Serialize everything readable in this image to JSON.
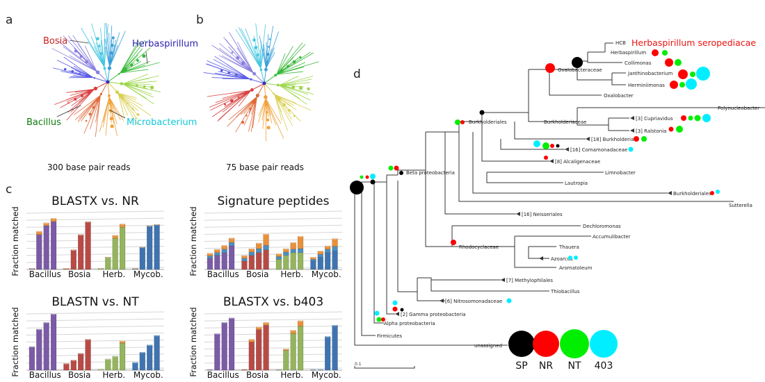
{
  "panels": {
    "a": {
      "letter": "a",
      "caption": "300 base pair reads",
      "labels": {
        "bosia": "Bosia",
        "herbaspirillum": "Herbaspirillum",
        "bacillus": "Bacillus",
        "microbacterium": "Microbacterium"
      }
    },
    "b": {
      "letter": "b",
      "caption": "75 base pair reads"
    },
    "c": {
      "letter": "c",
      "ylabel": "Fraction matched"
    },
    "d": {
      "letter": "d",
      "scale_label": "0.1"
    }
  },
  "chart_data": [
    {
      "type": "bar",
      "title": "BLASTX vs. NR",
      "ylabel": "Fraction matched",
      "categories": [
        "Bacillus",
        "Bosia",
        "Herb.",
        "Mycob."
      ],
      "stacked": true,
      "groups": [
        {
          "category": "Bacillus",
          "color": "#7b5aa6",
          "bars": [
            [
              0.02,
              0
            ],
            [
              0.62,
              0.06
            ],
            [
              0.78,
              0.05
            ],
            [
              0.85,
              0.06
            ]
          ]
        },
        {
          "category": "Bosia",
          "color": "#b84a45",
          "bars": [
            [
              0.02,
              0
            ],
            [
              0.35,
              0
            ],
            [
              0.62,
              0
            ],
            [
              0.85,
              0
            ]
          ]
        },
        {
          "category": "Herb.",
          "color": "#94b45e",
          "bars": [
            [
              0.02,
              0
            ],
            [
              0.22,
              0
            ],
            [
              0.55,
              0.06
            ],
            [
              0.75,
              0.06
            ]
          ]
        },
        {
          "category": "Mycob.",
          "color": "#3f74b0",
          "bars": [
            [
              0.02,
              0
            ],
            [
              0.4,
              0
            ],
            [
              0.78,
              0
            ],
            [
              0.8,
              0
            ]
          ]
        }
      ]
    },
    {
      "type": "bar",
      "title": "Signature peptides",
      "ylabel": "Fraction matched",
      "categories": [
        "Bacillus",
        "Bosia",
        "Herb.",
        "Mycob."
      ],
      "stacked": true,
      "groups": [
        {
          "category": "Bacillus",
          "color": "#7b5aa6",
          "bars": [
            [
              0.2,
              0.04,
              0.05
            ],
            [
              0.25,
              0.05,
              0.06
            ],
            [
              0.3,
              0.06,
              0.07
            ],
            [
              0.42,
              0.06,
              0.08
            ]
          ]
        },
        {
          "category": "Bosia",
          "color": "#b84a45",
          "bars": [
            [
              0.15,
              0.05,
              0.05
            ],
            [
              0.25,
              0.06,
              0.06
            ],
            [
              0.3,
              0.07,
              0.1
            ],
            [
              0.35,
              0.08,
              0.2
            ]
          ]
        },
        {
          "category": "Herb.",
          "color": "#94b45e",
          "bars": [
            [
              0.18,
              0.05,
              0.05
            ],
            [
              0.25,
              0.06,
              0.06
            ],
            [
              0.3,
              0.06,
              0.12
            ],
            [
              0.3,
              0.07,
              0.22
            ]
          ]
        },
        {
          "category": "Mycob.",
          "color": "#3f74b0",
          "bars": [
            [
              0.15,
              0.03,
              0.04
            ],
            [
              0.22,
              0.05,
              0.06
            ],
            [
              0.3,
              0.06,
              0.06
            ],
            [
              0.33,
              0.08,
              0.14
            ]
          ]
        }
      ]
    },
    {
      "type": "bar",
      "title": "BLASTN vs. NT",
      "ylabel": "Fraction matched",
      "categories": [
        "Bacillus",
        "Bosia",
        "Herb.",
        "Mycob."
      ],
      "stacked": false,
      "groups": [
        {
          "category": "Bacillus",
          "color": "#7b5aa6",
          "bars": [
            [
              0.42
            ],
            [
              0.73
            ],
            [
              0.85
            ],
            [
              1.0
            ]
          ]
        },
        {
          "category": "Bosia",
          "color": "#b84a45",
          "bars": [
            [
              0.12
            ],
            [
              0.18
            ],
            [
              0.3
            ],
            [
              0.55
            ]
          ]
        },
        {
          "category": "Herb.",
          "color": "#94b45e",
          "bars": [
            [
              0.02
            ],
            [
              0.2
            ],
            [
              0.25
            ],
            [
              0.48,
              0.04
            ]
          ]
        },
        {
          "category": "Mycob.",
          "color": "#3f74b0",
          "bars": [
            [
              0.14
            ],
            [
              0.32
            ],
            [
              0.45
            ],
            [
              0.62
            ]
          ]
        }
      ]
    },
    {
      "type": "bar",
      "title": "BLASTX vs. b403",
      "ylabel": "Fraction matched",
      "categories": [
        "Bacillus",
        "Bosia",
        "Herb.",
        "Mycob."
      ],
      "stacked": true,
      "groups": [
        {
          "category": "Bacillus",
          "color": "#7b5aa6",
          "bars": [
            [
              0.01
            ],
            [
              0.65
            ],
            [
              0.85
            ],
            [
              0.93
            ]
          ]
        },
        {
          "category": "Bosia",
          "color": "#b84a45",
          "bars": [
            [
              0.01
            ],
            [
              0.5,
              0.05
            ],
            [
              0.72,
              0.05
            ],
            [
              0.8,
              0.05
            ]
          ]
        },
        {
          "category": "Herb.",
          "color": "#94b45e",
          "bars": [
            [
              0.01
            ],
            [
              0.35,
              0.03
            ],
            [
              0.65,
              0.06
            ],
            [
              0.78,
              0.1
            ]
          ]
        },
        {
          "category": "Mycob.",
          "color": "#3f74b0",
          "bars": [
            [
              0.01
            ],
            [
              0.01
            ],
            [
              0.6
            ],
            [
              0.8
            ]
          ]
        }
      ]
    }
  ],
  "tree": {
    "highlight": "Herbaspirillum seropediacae",
    "nodes": {
      "hcb": "HCB",
      "herbaspirillum": "Herbaspirillum",
      "collimonas": "Collimonas",
      "janthinobacterium": "Janthinobacterium",
      "herminiimonas": "Herminiimonas",
      "oxalobacter": "Oxalobacter",
      "oxalobacteraceae": "Oxalobacteraceae",
      "polynucleobacter": "Polynucleobacter",
      "cupriavidus": "[3] Cupriavidus",
      "ralstonia": "[3] Ralstonia",
      "burkholderiaceae": "Burkholderiaceae",
      "burkholderia": "[18] Burkholderia",
      "burkholderiales": "Burkholderiales",
      "comamonadaceae": "[16] Comamonadaceae",
      "alcaligenaceae": "[8] Alcaligenaceae",
      "limnobacter": "Limnobacter",
      "lautropia": "Lautropia",
      "burkholderiales2": "Burkholderiales",
      "sutterella": "Sutterella",
      "betaproteo": "Beta proteobacteria",
      "neisseriales": "[16] Neisseriales",
      "dechloromonas": "Dechloromonas",
      "accumulibacter": "Accumulibacter",
      "rhodocyclaceae": "Rhodocyclaceae",
      "thauera": "Thauera",
      "azoarcus": "Azoarcus",
      "aromatoleum": "Aromatoleum",
      "methylophilales": "[7] Methylophilales",
      "thiobacillus": "Thiobacillus",
      "nitrosomonadaceae": "[6] Nitrosomonadaceae",
      "gammaproteo": "[2] Gamma proteobacteria",
      "alphaproteo": "Alpha proteobacteria",
      "firmicutes": "Firmicutes",
      "unassigned": "unassigned"
    },
    "legend": [
      {
        "label": "SP",
        "color": "#000000"
      },
      {
        "label": "NR",
        "color": "#ff0000"
      },
      {
        "label": "NT",
        "color": "#00ee00"
      },
      {
        "label": "403",
        "color": "#00eeff"
      }
    ]
  }
}
